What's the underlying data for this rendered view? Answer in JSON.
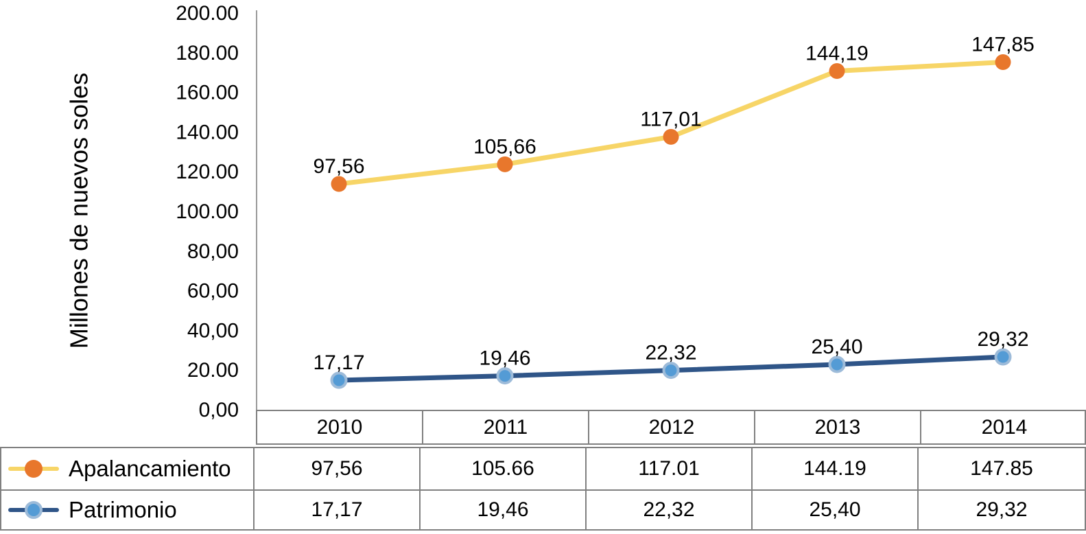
{
  "chart_data": {
    "type": "line",
    "title": "",
    "xlabel": "",
    "ylabel": "Millones de nuevos soles",
    "categories": [
      "2010",
      "2011",
      "2012",
      "2013",
      "2014"
    ],
    "series": [
      {
        "name": "Apalancamiento",
        "values": [
          97.56,
          105.66,
          117.01,
          144.19,
          147.85
        ],
        "point_labels": [
          "97,56",
          "105,66",
          "117,01",
          "144,19",
          "147,85"
        ],
        "line_color": "#F7D567",
        "marker_color": "#E8772C"
      },
      {
        "name": "Patrimonio",
        "values": [
          17.17,
          19.46,
          22.32,
          25.4,
          29.32
        ],
        "point_labels": [
          "17,17",
          "19,46",
          "22,32",
          "25,40",
          "29,32"
        ],
        "line_color": "#2F5588",
        "marker_color": "#549BD5",
        "marker_rim_color": "#9DBBD9"
      }
    ],
    "ylim": [
      0,
      200
    ],
    "ytick_labels": [
      "200.00",
      "180.00",
      "160.00",
      "140.00",
      "120.00",
      "100.00",
      "80,00",
      "60,00",
      "40,00",
      "20.00",
      "0,00"
    ],
    "grid": false,
    "legend_position": "table-rows-left",
    "axis_color": "#9A9A9A",
    "label_color": "#000000"
  },
  "table": {
    "border_color": "#808080",
    "year_headers": [
      "2010",
      "2011",
      "2012",
      "2013",
      "2014"
    ],
    "rows": [
      {
        "legend": "Apalancamiento",
        "values": [
          "97,56",
          "105.66",
          "117.01",
          "144.19",
          "147.85"
        ]
      },
      {
        "legend": "Patrimonio",
        "values": [
          "17,17",
          "19,46",
          "22,32",
          "25,40",
          "29,32"
        ]
      }
    ]
  }
}
